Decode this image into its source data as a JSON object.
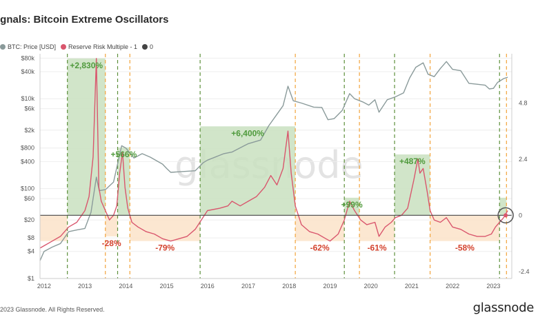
{
  "title": "ignals: Bitcoin Extreme Oscillators",
  "legend": [
    {
      "label": "BTC: Price [USD]",
      "color": "#8a9a9a"
    },
    {
      "label": "Reserve Risk Multiple - 1",
      "color": "#d9566d"
    },
    {
      "label": "0",
      "color": "#444444"
    }
  ],
  "footer": "2023 Glassnode. All Rights Reserved.",
  "brand": "glassnode",
  "watermark": "glassnode",
  "chart_data": {
    "type": "line",
    "x_ticks": [
      "2012",
      "2013",
      "2014",
      "2015",
      "2016",
      "2017",
      "2018",
      "2019",
      "2020",
      "2021",
      "2022",
      "2023"
    ],
    "y_left_ticks": [
      "$80k",
      "$40k",
      "$10k",
      "$6k",
      "$2k",
      "$800",
      "$400",
      "$100",
      "$60",
      "$20",
      "$8",
      "$4",
      "$1"
    ],
    "y_left_values": [
      80000,
      40000,
      10000,
      6000,
      2000,
      800,
      400,
      100,
      60,
      20,
      8,
      4,
      1
    ],
    "y_right_ticks": [
      "4.8",
      "2.4",
      "0",
      "-2.4"
    ],
    "y_right_values": [
      4.8,
      2.4,
      0,
      -2.4
    ],
    "y_left_scale": "log",
    "x_range": [
      2011.9,
      2023.45
    ],
    "y_right_range": [
      -2.7,
      6.9
    ],
    "series": [
      {
        "name": "BTC: Price [USD]",
        "color": "#8a9a9a",
        "axis": "left",
        "points": [
          [
            2011.9,
            2.5
          ],
          [
            2012.0,
            4
          ],
          [
            2012.2,
            5
          ],
          [
            2012.4,
            6
          ],
          [
            2012.6,
            11
          ],
          [
            2012.8,
            12
          ],
          [
            2013.0,
            13
          ],
          [
            2013.15,
            30
          ],
          [
            2013.28,
            180
          ],
          [
            2013.35,
            90
          ],
          [
            2013.5,
            95
          ],
          [
            2013.7,
            140
          ],
          [
            2013.9,
            900
          ],
          [
            2014.0,
            800
          ],
          [
            2014.2,
            480
          ],
          [
            2014.4,
            600
          ],
          [
            2014.6,
            500
          ],
          [
            2014.9,
            350
          ],
          [
            2015.0,
            280
          ],
          [
            2015.1,
            230
          ],
          [
            2015.4,
            240
          ],
          [
            2015.7,
            250
          ],
          [
            2015.9,
            380
          ],
          [
            2016.0,
            430
          ],
          [
            2016.4,
            600
          ],
          [
            2016.6,
            650
          ],
          [
            2016.9,
            900
          ],
          [
            2017.0,
            1000
          ],
          [
            2017.3,
            1200
          ],
          [
            2017.5,
            2500
          ],
          [
            2017.7,
            4500
          ],
          [
            2017.85,
            7000
          ],
          [
            2017.97,
            19000
          ],
          [
            2018.1,
            9000
          ],
          [
            2018.3,
            8000
          ],
          [
            2018.6,
            6500
          ],
          [
            2018.8,
            6400
          ],
          [
            2018.95,
            3400
          ],
          [
            2019.1,
            3600
          ],
          [
            2019.3,
            5500
          ],
          [
            2019.48,
            13000
          ],
          [
            2019.6,
            10000
          ],
          [
            2019.8,
            8500
          ],
          [
            2019.95,
            7200
          ],
          [
            2020.1,
            9500
          ],
          [
            2020.2,
            5000
          ],
          [
            2020.4,
            9500
          ],
          [
            2020.6,
            11000
          ],
          [
            2020.8,
            13500
          ],
          [
            2020.95,
            29000
          ],
          [
            2021.1,
            50000
          ],
          [
            2021.28,
            63000
          ],
          [
            2021.4,
            35000
          ],
          [
            2021.55,
            31000
          ],
          [
            2021.7,
            47000
          ],
          [
            2021.85,
            67000
          ],
          [
            2022.0,
            45000
          ],
          [
            2022.2,
            42000
          ],
          [
            2022.4,
            22000
          ],
          [
            2022.6,
            21000
          ],
          [
            2022.8,
            20000
          ],
          [
            2022.9,
            16500
          ],
          [
            2023.0,
            17000
          ],
          [
            2023.1,
            23000
          ],
          [
            2023.25,
            28000
          ],
          [
            2023.35,
            30000
          ]
        ]
      },
      {
        "name": "Reserve Risk Multiple - 1",
        "color": "#d9566d",
        "axis": "right",
        "points": [
          [
            2011.9,
            -1.4
          ],
          [
            2012.0,
            -1.3
          ],
          [
            2012.2,
            -1.1
          ],
          [
            2012.4,
            -0.9
          ],
          [
            2012.6,
            -0.5
          ],
          [
            2012.8,
            -0.3
          ],
          [
            2013.0,
            0.2
          ],
          [
            2013.1,
            0.8
          ],
          [
            2013.2,
            2.5
          ],
          [
            2013.28,
            6.7
          ],
          [
            2013.34,
            1.2
          ],
          [
            2013.4,
            0.6
          ],
          [
            2013.5,
            0.2
          ],
          [
            2013.6,
            -0.2
          ],
          [
            2013.7,
            0.0
          ],
          [
            2013.78,
            0.4
          ],
          [
            2013.85,
            1.8
          ],
          [
            2013.92,
            2.7
          ],
          [
            2013.98,
            1.2
          ],
          [
            2014.05,
            0.3
          ],
          [
            2014.15,
            -0.3
          ],
          [
            2014.3,
            -0.5
          ],
          [
            2014.5,
            -0.7
          ],
          [
            2014.7,
            -0.8
          ],
          [
            2014.9,
            -1.0
          ],
          [
            2015.1,
            -1.1
          ],
          [
            2015.3,
            -1.0
          ],
          [
            2015.5,
            -0.9
          ],
          [
            2015.7,
            -0.6
          ],
          [
            2015.85,
            -0.2
          ],
          [
            2016.0,
            0.2
          ],
          [
            2016.3,
            0.3
          ],
          [
            2016.5,
            0.4
          ],
          [
            2016.6,
            0.6
          ],
          [
            2016.8,
            0.4
          ],
          [
            2017.0,
            0.6
          ],
          [
            2017.2,
            0.8
          ],
          [
            2017.4,
            1.2
          ],
          [
            2017.55,
            1.7
          ],
          [
            2017.7,
            1.3
          ],
          [
            2017.85,
            2.0
          ],
          [
            2017.97,
            3.6
          ],
          [
            2018.05,
            1.8
          ],
          [
            2018.15,
            0.4
          ],
          [
            2018.3,
            -0.4
          ],
          [
            2018.5,
            -0.7
          ],
          [
            2018.7,
            -0.8
          ],
          [
            2018.9,
            -1.0
          ],
          [
            2019.0,
            -1.1
          ],
          [
            2019.2,
            -0.8
          ],
          [
            2019.35,
            -0.2
          ],
          [
            2019.48,
            0.6
          ],
          [
            2019.6,
            0.2
          ],
          [
            2019.75,
            -0.2
          ],
          [
            2019.9,
            -0.4
          ],
          [
            2020.1,
            -0.3
          ],
          [
            2020.2,
            -0.9
          ],
          [
            2020.35,
            -0.5
          ],
          [
            2020.5,
            -0.3
          ],
          [
            2020.6,
            -0.1
          ],
          [
            2020.75,
            0.0
          ],
          [
            2020.9,
            0.3
          ],
          [
            2021.05,
            1.5
          ],
          [
            2021.15,
            2.4
          ],
          [
            2021.2,
            1.8
          ],
          [
            2021.28,
            2.0
          ],
          [
            2021.38,
            1.0
          ],
          [
            2021.45,
            0.2
          ],
          [
            2021.55,
            -0.2
          ],
          [
            2021.7,
            -0.3
          ],
          [
            2021.85,
            -0.1
          ],
          [
            2022.0,
            -0.5
          ],
          [
            2022.2,
            -0.6
          ],
          [
            2022.4,
            -0.8
          ],
          [
            2022.6,
            -0.9
          ],
          [
            2022.8,
            -0.9
          ],
          [
            2022.95,
            -0.8
          ],
          [
            2023.05,
            -0.5
          ],
          [
            2023.15,
            -0.3
          ],
          [
            2023.25,
            -0.1
          ],
          [
            2023.35,
            0.2
          ]
        ]
      }
    ],
    "zero_line": 0,
    "shaded_regions": [
      {
        "label": "+2,830%",
        "x": [
          2012.57,
          2013.5
        ],
        "y_top": 6.7,
        "y_bottom": 0,
        "fill": "#c9e0bf",
        "label_color": "#4f9a3c"
      },
      {
        "label": "+566%",
        "x": [
          2013.8,
          2014.1
        ],
        "y_top": 2.9,
        "y_bottom": 0,
        "fill": "#c9e0bf",
        "label_color": "#4f9a3c"
      },
      {
        "label": "+6,400%",
        "x": [
          2015.82,
          2018.15
        ],
        "y_top": 3.8,
        "y_bottom": 0,
        "fill": "#c9e0bf",
        "label_color": "#4f9a3c"
      },
      {
        "label": "+99%",
        "x": [
          2019.35,
          2019.72
        ],
        "y_top": 0.75,
        "y_bottom": 0,
        "fill": "#c9e0bf",
        "label_color": "#4f9a3c"
      },
      {
        "label": "+487%",
        "x": [
          2020.58,
          2021.45
        ],
        "y_top": 2.6,
        "y_bottom": 0,
        "fill": "#c9e0bf",
        "label_color": "#4f9a3c"
      },
      {
        "label": "",
        "x": [
          2023.15,
          2023.32
        ],
        "y_top": 0.75,
        "y_bottom": 0,
        "fill": "#c9e0bf",
        "label_color": "#4f9a3c"
      },
      {
        "label": "",
        "x": [
          2011.9,
          2012.57
        ],
        "y_top": 0,
        "y_bottom": -1.1,
        "fill": "#fbe3c9",
        "label_color": "#d4432e"
      },
      {
        "label": "-28%",
        "x": [
          2013.5,
          2013.8
        ],
        "y_top": 0,
        "y_bottom": -0.9,
        "fill": "#fbe3c9",
        "label_color": "#d4432e"
      },
      {
        "label": "-79%",
        "x": [
          2014.1,
          2015.82
        ],
        "y_top": 0,
        "y_bottom": -1.1,
        "fill": "#fbe3c9",
        "label_color": "#d4432e"
      },
      {
        "label": "-62%",
        "x": [
          2018.15,
          2019.35
        ],
        "y_top": 0,
        "y_bottom": -1.1,
        "fill": "#fbe3c9",
        "label_color": "#d4432e"
      },
      {
        "label": "-61%",
        "x": [
          2019.72,
          2020.58
        ],
        "y_top": 0,
        "y_bottom": -1.1,
        "fill": "#fbe3c9",
        "label_color": "#d4432e"
      },
      {
        "label": "-58%",
        "x": [
          2021.45,
          2023.15
        ],
        "y_top": 0,
        "y_bottom": -1.1,
        "fill": "#fbe3c9",
        "label_color": "#d4432e"
      }
    ],
    "green_dashed_x": [
      2012.57,
      2013.8,
      2015.82,
      2019.35,
      2020.58,
      2023.15
    ],
    "orange_dashed_x": [
      2013.5,
      2014.1,
      2018.15,
      2019.72,
      2021.45,
      2023.32
    ],
    "marker": {
      "x": 2023.3,
      "y": 0,
      "color": "#555555"
    },
    "grid": true
  }
}
